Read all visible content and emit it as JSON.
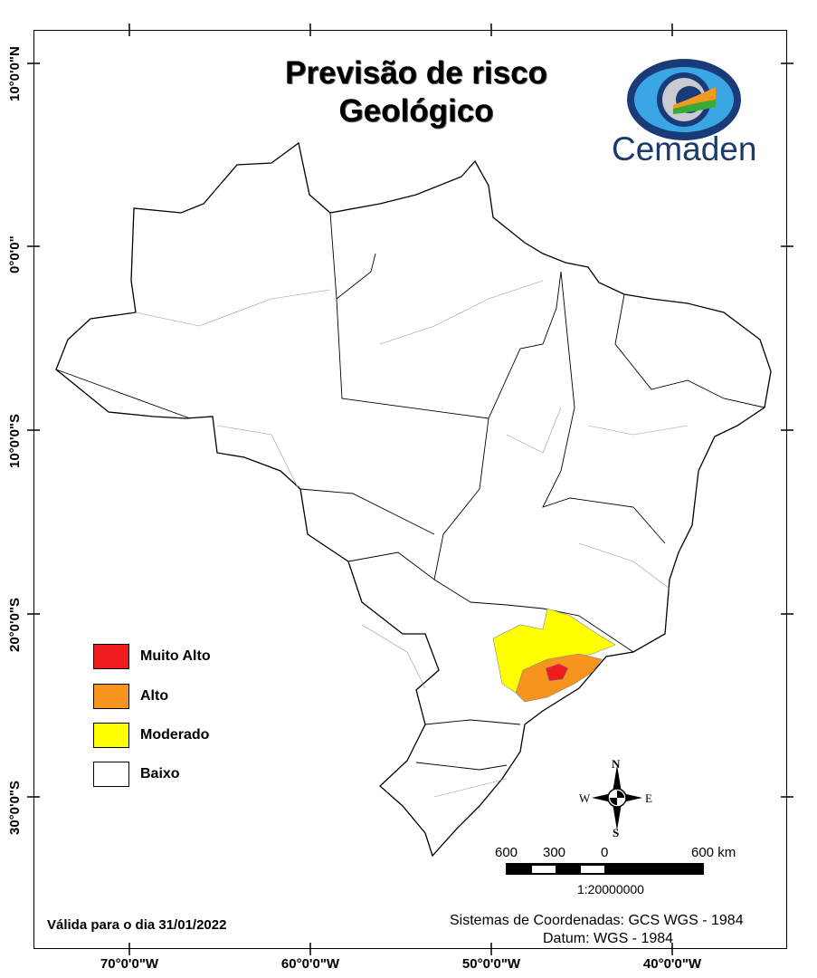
{
  "title": {
    "line1": "Previsão de risco",
    "line2": "Geológico"
  },
  "logo": {
    "text": "Cemaden"
  },
  "axes": {
    "lat_labels": [
      "10°0'0\"N",
      "0°0'0\"",
      "10°0'0\"S",
      "20°0'0\"S",
      "30°0'0\"S"
    ],
    "lon_labels": [
      "70°0'0\"W",
      "60°0'0\"W",
      "50°0'0\"W",
      "40°0'0\"W"
    ]
  },
  "legend": [
    {
      "label": "Muito Alto",
      "color": "#ee1c1c"
    },
    {
      "label": "Alto",
      "color": "#f7941d"
    },
    {
      "label": "Moderado",
      "color": "#ffff00"
    },
    {
      "label": "Baixo",
      "color": "#ffffff"
    }
  ],
  "compass": {
    "n": "N",
    "s": "S",
    "e": "E",
    "w": "W"
  },
  "scale": {
    "labels": [
      "600",
      "300",
      "0",
      "600 km"
    ],
    "ratio": "1:20000000"
  },
  "valid_date": "Válida para o dia  31/01/2022",
  "coords": {
    "system": "Sistemas de Coordenadas: GCS WGS - 1984",
    "datum": "Datum: WGS - 1984"
  }
}
